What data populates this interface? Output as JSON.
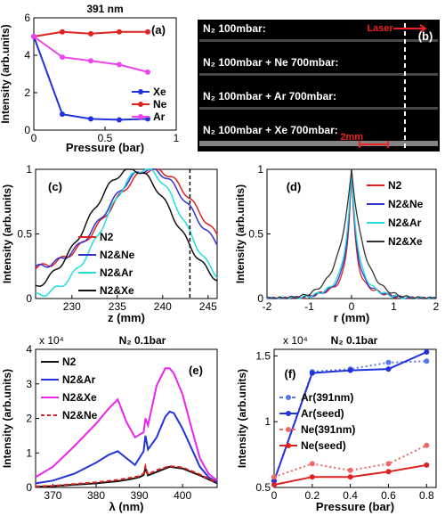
{
  "figure": {
    "title_a": "391 nm",
    "title_e": "N₂ 0.1bar",
    "title_f": "N₂ 0.1bar"
  },
  "chart_data": [
    {
      "id": "a",
      "panel_label": "(a)",
      "type": "line",
      "title": "391 nm",
      "xlabel": "Pressure (bar)",
      "ylabel": "Intensity (arb.units)",
      "xlim": [
        0,
        1
      ],
      "ylim": [
        0,
        6
      ],
      "xticks": [
        "0",
        "0.5",
        "1"
      ],
      "yticks": [
        "0",
        "2",
        "4",
        "6"
      ],
      "legend": "right",
      "series": [
        {
          "name": "Xe",
          "color": "#2233dd",
          "x": [
            0,
            0.2,
            0.4,
            0.6,
            0.8
          ],
          "y": [
            5.0,
            0.85,
            0.6,
            0.55,
            0.6
          ]
        },
        {
          "name": "Ne",
          "color": "#dd2222",
          "x": [
            0,
            0.2,
            0.4,
            0.6,
            0.8
          ],
          "y": [
            5.0,
            5.25,
            5.15,
            5.25,
            5.25
          ]
        },
        {
          "name": "Ar",
          "color": "#ee44ee",
          "x": [
            0,
            0.2,
            0.4,
            0.6,
            0.8
          ],
          "y": [
            5.0,
            3.9,
            3.7,
            3.5,
            3.1
          ]
        }
      ]
    },
    {
      "id": "b",
      "panel_label": "(b)",
      "type": "image",
      "rows": [
        "N₂ 100mbar:",
        "N₂ 100mbar + Ne 700mbar:",
        "N₂ 100mbar + Ar 700mbar:",
        "N₂ 100mbar + Xe 700mbar:"
      ],
      "laser_label": "Laser",
      "scale_label": "2mm"
    },
    {
      "id": "c",
      "panel_label": "(c)",
      "type": "line",
      "xlabel": "z (mm)",
      "ylabel": "Intensity (arb.units)",
      "xlim": [
        226,
        246
      ],
      "ylim": [
        0,
        1
      ],
      "xticks": [
        "230",
        "235",
        "240",
        "245"
      ],
      "yticks": [
        "0",
        "0.5",
        "1"
      ],
      "dashed_line_x": 243,
      "legend": "lower-right",
      "series": [
        {
          "name": "N2",
          "color": "#dd2222",
          "center": 239,
          "sigma": 4.8,
          "floor": 0.22
        },
        {
          "name": "N2&Ne",
          "color": "#3333cc",
          "center": 238.5,
          "sigma": 4.6,
          "floor": 0.22
        },
        {
          "name": "N2&Ar",
          "color": "#22dddd",
          "center": 238,
          "sigma": 4.3,
          "floor": 0.0
        },
        {
          "name": "N2&Xe",
          "color": "#111111",
          "center": 236.6,
          "sigma": 4.8,
          "floor": 0.0
        }
      ]
    },
    {
      "id": "d",
      "panel_label": "(d)",
      "type": "line",
      "xlabel": "r (mm)",
      "ylabel": "Intensity (arb.units)",
      "xlim": [
        -2,
        2
      ],
      "ylim": [
        0,
        1
      ],
      "xticks": [
        "-2",
        "-1",
        "0",
        "1",
        "2"
      ],
      "yticks": [
        "0",
        "0.5",
        "1"
      ],
      "legend": "top-right",
      "series": [
        {
          "name": "N2",
          "color": "#dd2222",
          "width": 0.1
        },
        {
          "name": "N2&Ne",
          "color": "#3333cc",
          "width": 0.12
        },
        {
          "name": "N2&Ar",
          "color": "#22dddd",
          "width": 0.14
        },
        {
          "name": "N2&Xe",
          "color": "#333333",
          "width": 0.26
        }
      ]
    },
    {
      "id": "e",
      "panel_label": "(e)",
      "type": "line",
      "title": "N₂ 0.1bar",
      "xlabel": "λ (nm)",
      "ylabel": "Intensity (arb.units)",
      "multiplier": "x 10⁴",
      "xlim": [
        366,
        408
      ],
      "ylim": [
        0,
        4
      ],
      "xticks": [
        "370",
        "380",
        "390",
        "400"
      ],
      "yticks": [
        "0",
        "1",
        "2",
        "3",
        "4"
      ],
      "legend": "top-left",
      "series": [
        {
          "name": "N2",
          "color": "#111111",
          "dash": false,
          "x": [
            366,
            370,
            375,
            380,
            385,
            388,
            390,
            391,
            391.4,
            392,
            394,
            397,
            400,
            404,
            408
          ],
          "y": [
            0.02,
            0.04,
            0.08,
            0.12,
            0.18,
            0.24,
            0.3,
            0.36,
            0.55,
            0.35,
            0.45,
            0.6,
            0.55,
            0.35,
            0.12
          ]
        },
        {
          "name": "N2&Ar",
          "color": "#2233dd",
          "dash": false,
          "x": [
            366,
            370,
            375,
            380,
            383,
            385,
            387,
            389,
            391,
            391.4,
            392,
            394,
            396,
            397,
            398,
            400,
            402,
            404,
            406,
            408
          ],
          "y": [
            0.12,
            0.2,
            0.4,
            0.72,
            0.95,
            1.05,
            0.85,
            0.65,
            1.05,
            1.5,
            1.1,
            1.45,
            2.05,
            2.2,
            2.15,
            1.7,
            1.15,
            0.6,
            0.3,
            0.15
          ]
        },
        {
          "name": "N2&Xe",
          "color": "#ee22ee",
          "dash": false,
          "x": [
            366,
            370,
            375,
            380,
            383,
            385,
            387,
            389,
            391,
            391.4,
            392,
            394,
            396,
            397,
            398,
            400,
            402,
            404,
            406,
            408
          ],
          "y": [
            0.3,
            0.6,
            1.2,
            1.85,
            2.3,
            2.55,
            1.9,
            1.45,
            1.6,
            2.0,
            1.8,
            2.95,
            3.45,
            3.45,
            3.3,
            2.7,
            1.75,
            0.85,
            0.4,
            0.2
          ]
        },
        {
          "name": "N2&Ne",
          "color": "#dd2222",
          "dash": true,
          "x": [
            366,
            370,
            375,
            380,
            385,
            388,
            390,
            391,
            391.4,
            392,
            394,
            397,
            400,
            404,
            408
          ],
          "y": [
            0.03,
            0.05,
            0.1,
            0.15,
            0.22,
            0.28,
            0.33,
            0.4,
            0.62,
            0.38,
            0.5,
            0.62,
            0.58,
            0.38,
            0.14
          ]
        }
      ]
    },
    {
      "id": "f",
      "panel_label": "(f)",
      "type": "line",
      "title": "N₂ 0.1bar",
      "xlabel": "Pressure (bar)",
      "ylabel": "Intensity (arb.units)",
      "multiplier": "x 10⁴",
      "xlim": [
        0,
        0.85
      ],
      "ylim": [
        0.5,
        1.55
      ],
      "xticks": [
        "0",
        "0.2",
        "0.4",
        "0.6",
        "0.8"
      ],
      "yticks": [
        "0.5",
        "1",
        "1.5"
      ],
      "legend": "center-left",
      "series": [
        {
          "name": "Ar(391nm)",
          "color": "#5577ee",
          "dash": true,
          "x": [
            0,
            0.2,
            0.4,
            0.6,
            0.8
          ],
          "y": [
            0.55,
            1.38,
            1.4,
            1.45,
            1.46
          ]
        },
        {
          "name": "Ar(seed)",
          "color": "#2233dd",
          "dash": false,
          "x": [
            0,
            0.2,
            0.4,
            0.6,
            0.8
          ],
          "y": [
            0.55,
            1.37,
            1.39,
            1.4,
            1.53
          ]
        },
        {
          "name": "Ne(391nm)",
          "color": "#ee6666",
          "dash": true,
          "x": [
            0,
            0.2,
            0.4,
            0.6,
            0.8
          ],
          "y": [
            0.58,
            0.68,
            0.63,
            0.68,
            0.82
          ]
        },
        {
          "name": "Ne(seed)",
          "color": "#dd2222",
          "dash": false,
          "x": [
            0,
            0.2,
            0.4,
            0.6,
            0.8
          ],
          "y": [
            0.52,
            0.58,
            0.58,
            0.62,
            0.67
          ]
        }
      ]
    }
  ]
}
